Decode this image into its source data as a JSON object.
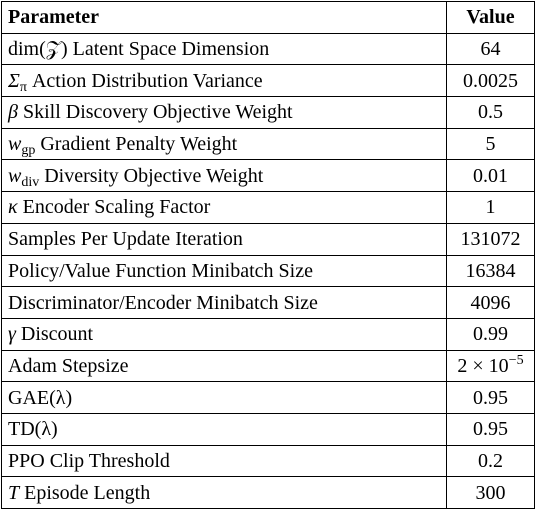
{
  "table": {
    "header": [
      "Parameter",
      "Value"
    ],
    "rows": [
      {
        "label": "dim(𝒵) Latent Space Dimension",
        "value": "64"
      },
      {
        "symbol": "Σ",
        "sub": "π",
        "label": "Action Distribution Variance",
        "value": "0.0025"
      },
      {
        "symbol": "β",
        "label": "Skill Discovery Objective Weight",
        "value": "0.5"
      },
      {
        "symbol": "w",
        "sub": "gp",
        "label": "Gradient Penalty Weight",
        "value": "5"
      },
      {
        "symbol": "w",
        "sub": "div",
        "label": "Diversity Objective Weight",
        "value": "0.01"
      },
      {
        "symbol": "κ",
        "label": "Encoder Scaling Factor",
        "value": "1"
      },
      {
        "label": "Samples Per Update Iteration",
        "value": "131072"
      },
      {
        "label": "Policy/Value Function Minibatch Size",
        "value": "16384"
      },
      {
        "label": "Discriminator/Encoder Minibatch Size",
        "value": "4096"
      },
      {
        "symbol": "γ",
        "label": "Discount",
        "value": "0.99"
      },
      {
        "label": "Adam Stepsize",
        "value": "2 × 10",
        "value_sup": "−5"
      },
      {
        "label": "GAE(λ)",
        "value": "0.95"
      },
      {
        "label": "TD(λ)",
        "value": "0.95"
      },
      {
        "label": "PPO Clip Threshold",
        "value": "0.2"
      },
      {
        "symbol": "T",
        "label": "Episode Length",
        "value": "300"
      }
    ]
  }
}
